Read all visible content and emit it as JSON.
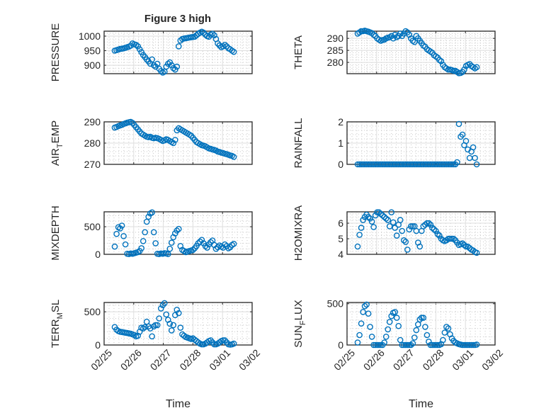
{
  "figure": {
    "title": "Figure 3 high"
  },
  "chart_data": {
    "type": "scatter",
    "marker": "open-circle",
    "series_color": "#0072BD",
    "x_axis": {
      "label": "Time",
      "unit": "days since 02/25",
      "xlim": [
        0,
        5
      ],
      "tick_values": [
        0,
        1,
        2,
        3,
        4,
        5
      ],
      "tick_labels": [
        "02/25",
        "02/26",
        "02/27",
        "02/28",
        "03/01",
        "03/02"
      ]
    },
    "time": {
      "start_days": 0.36,
      "step_days": 0.06,
      "count": 68
    },
    "panels": [
      {
        "name": "PRESSURE",
        "ylabel": {
          "pre": "PRESSURE",
          "sub": "",
          "post": ""
        },
        "ylim": [
          871,
          1017
        ],
        "yticks": [
          900,
          950,
          1000
        ],
        "yminor": 10,
        "values": [
          950,
          952,
          954,
          956,
          957,
          958,
          960,
          962,
          964,
          967,
          975,
          972,
          970,
          965,
          955,
          945,
          935,
          928,
          920,
          913,
          905,
          920,
          900,
          895,
          905,
          888,
          880,
          875,
          878,
          895,
          905,
          910,
          900,
          890,
          885,
          895,
          965,
          985,
          990,
          992,
          993,
          994,
          995,
          996,
          997,
          998,
          1003,
          1008,
          1012,
          1015,
          1012,
          1005,
          1000,
          998,
          1005,
          1008,
          1003,
          990,
          975,
          968,
          962,
          965,
          970,
          965,
          958,
          955,
          950,
          946
        ]
      },
      {
        "name": "THETA",
        "ylabel": {
          "pre": "THETA",
          "sub": "",
          "post": ""
        },
        "ylim": [
          275.3,
          293
        ],
        "yticks": [
          280,
          285,
          290
        ],
        "yminor": 1,
        "values": [
          292,
          292.5,
          293,
          293,
          293.2,
          293,
          292.8,
          292.5,
          292.2,
          291.5,
          291,
          290,
          289.5,
          289,
          289.3,
          289.5,
          290,
          290.3,
          290.5,
          291,
          290,
          291.5,
          290.5,
          291,
          292,
          291,
          292,
          293,
          292.5,
          291.5,
          290,
          289,
          288.5,
          291,
          290,
          289,
          288,
          287,
          286.5,
          285.5,
          285,
          284.5,
          284,
          283,
          282.5,
          282,
          281,
          280.5,
          279,
          278,
          277.5,
          277,
          277,
          276.8,
          276.5,
          276.5,
          276,
          275.5,
          275.6,
          276,
          277,
          278.5,
          279,
          279.3,
          278.5,
          278,
          277.5,
          278
        ]
      },
      {
        "name": "AIR_TEMP",
        "ylabel": {
          "pre": "AIR",
          "sub": "T",
          "post": "EMP"
        },
        "ylim": [
          270,
          290
        ],
        "yticks": [
          270,
          280,
          290
        ],
        "yminor": 2,
        "values": [
          287.3,
          287.6,
          288,
          288.3,
          288.6,
          289,
          289.3,
          289.6,
          289.8,
          290,
          289.5,
          288.5,
          287.5,
          286.5,
          285.5,
          284.5,
          284,
          283.5,
          283,
          282.8,
          283,
          282.5,
          282.3,
          282.5,
          282.3,
          282,
          281.5,
          281,
          281.3,
          281.8,
          281.5,
          281,
          280.5,
          280,
          281.5,
          286,
          287,
          286.5,
          286,
          285.5,
          285,
          284.5,
          284,
          283.5,
          282.5,
          281.5,
          280.5,
          280,
          279.5,
          279,
          278.8,
          278.5,
          278,
          277.5,
          277.3,
          277,
          276.8,
          276.5,
          276,
          275.8,
          275.5,
          275.3,
          275,
          274.8,
          274.5,
          274.2,
          274,
          273.5
        ]
      },
      {
        "name": "RAINFALL",
        "ylabel": {
          "pre": "RAINFALL",
          "sub": "",
          "post": ""
        },
        "ylim": [
          0,
          2
        ],
        "yticks": [
          0,
          1,
          2
        ],
        "yminor": 0.2,
        "values": [
          0,
          0,
          0,
          0,
          0,
          0,
          0,
          0,
          0,
          0,
          0,
          0,
          0,
          0,
          0,
          0,
          0,
          0,
          0,
          0,
          0,
          0,
          0,
          0,
          0,
          0,
          0,
          0,
          0,
          0,
          0,
          0,
          0,
          0,
          0,
          0,
          0,
          0,
          0,
          0,
          0,
          0,
          0,
          0,
          0,
          0,
          0,
          0,
          0,
          0,
          0,
          0,
          0,
          0,
          0,
          0,
          0.1,
          1.9,
          1.3,
          1.4,
          0.9,
          1.1,
          0.7,
          0.3,
          0.6,
          0.8,
          0.3,
          0
        ]
      },
      {
        "name": "MIXDEPTH",
        "ylabel": {
          "pre": "MIXDEPTH",
          "sub": "",
          "post": ""
        },
        "ylim": [
          0,
          770
        ],
        "yticks": [
          0,
          500
        ],
        "yminor": 100,
        "values": [
          140,
          370,
          490,
          470,
          520,
          330,
          180,
          10,
          5,
          15,
          10,
          20,
          30,
          40,
          60,
          110,
          240,
          400,
          590,
          680,
          740,
          760,
          400,
          200,
          10,
          5,
          15,
          10,
          20,
          15,
          5,
          100,
          210,
          310,
          380,
          430,
          460,
          150,
          80,
          60,
          40,
          50,
          60,
          70,
          80,
          110,
          150,
          200,
          230,
          260,
          200,
          150,
          120,
          180,
          220,
          250,
          170,
          100,
          130,
          160,
          140,
          120,
          180,
          150,
          110,
          130,
          170,
          190
        ]
      },
      {
        "name": "H2OMIXRA",
        "ylabel": {
          "pre": "H2OMIXRA",
          "sub": "",
          "post": ""
        },
        "ylim": [
          4,
          6.73
        ],
        "yticks": [
          4,
          5,
          6
        ],
        "yminor": 0.2,
        "values": [
          4.5,
          5.25,
          5.7,
          6.2,
          6.4,
          6.55,
          6.4,
          6.3,
          6.1,
          5.75,
          6.5,
          6.7,
          6.7,
          6.6,
          6.5,
          6.4,
          6.3,
          6.2,
          5.8,
          6.7,
          6.05,
          5.7,
          5.2,
          5.9,
          6.2,
          5.5,
          4.9,
          4.8,
          4.3,
          5.6,
          5.8,
          5.8,
          5.8,
          5.5,
          4.75,
          4.5,
          5.5,
          5.8,
          5.9,
          6.0,
          6.0,
          5.9,
          5.7,
          5.6,
          5.5,
          5.3,
          5.2,
          5.0,
          4.9,
          4.85,
          4.9,
          5.0,
          5.0,
          5.0,
          5.0,
          4.9,
          4.75,
          4.6,
          4.65,
          4.7,
          4.6,
          4.5,
          4.5,
          4.4,
          4.3,
          4.25,
          4.15,
          4.1
        ]
      },
      {
        "name": "TERR_MSL",
        "ylabel": {
          "pre": "TERR",
          "sub": "M",
          "post": "SL"
        },
        "ylim": [
          0,
          640
        ],
        "yticks": [
          0,
          500
        ],
        "yminor": 100,
        "values": [
          270,
          230,
          210,
          200,
          195,
          190,
          185,
          180,
          175,
          170,
          160,
          150,
          130,
          140,
          200,
          260,
          250,
          270,
          350,
          280,
          250,
          130,
          280,
          300,
          300,
          400,
          550,
          600,
          630,
          460,
          380,
          320,
          220,
          300,
          450,
          530,
          480,
          260,
          160,
          140,
          120,
          110,
          100,
          90,
          100,
          80,
          60,
          40,
          20,
          10,
          10,
          20,
          40,
          60,
          70,
          40,
          10,
          10,
          20,
          40,
          60,
          70,
          70,
          40,
          10,
          5,
          10,
          20
        ]
      },
      {
        "name": "SUN_FLUX",
        "ylabel": {
          "pre": "SUN",
          "sub": "F",
          "post": "LUX"
        },
        "ylim": [
          0,
          515
        ],
        "yticks": [
          0,
          500
        ],
        "yminor": 100,
        "values": [
          30,
          120,
          260,
          400,
          470,
          490,
          380,
          220,
          100,
          0,
          0,
          0,
          0,
          0,
          0,
          30,
          100,
          190,
          280,
          350,
          390,
          400,
          330,
          230,
          60,
          0,
          0,
          0,
          0,
          0,
          0,
          20,
          90,
          180,
          250,
          310,
          330,
          330,
          220,
          120,
          40,
          0,
          0,
          0,
          0,
          0,
          0,
          10,
          60,
          150,
          220,
          200,
          130,
          80,
          50,
          30,
          20,
          10,
          5,
          0,
          0,
          0,
          0,
          0,
          0,
          0,
          0,
          5
        ]
      }
    ]
  }
}
